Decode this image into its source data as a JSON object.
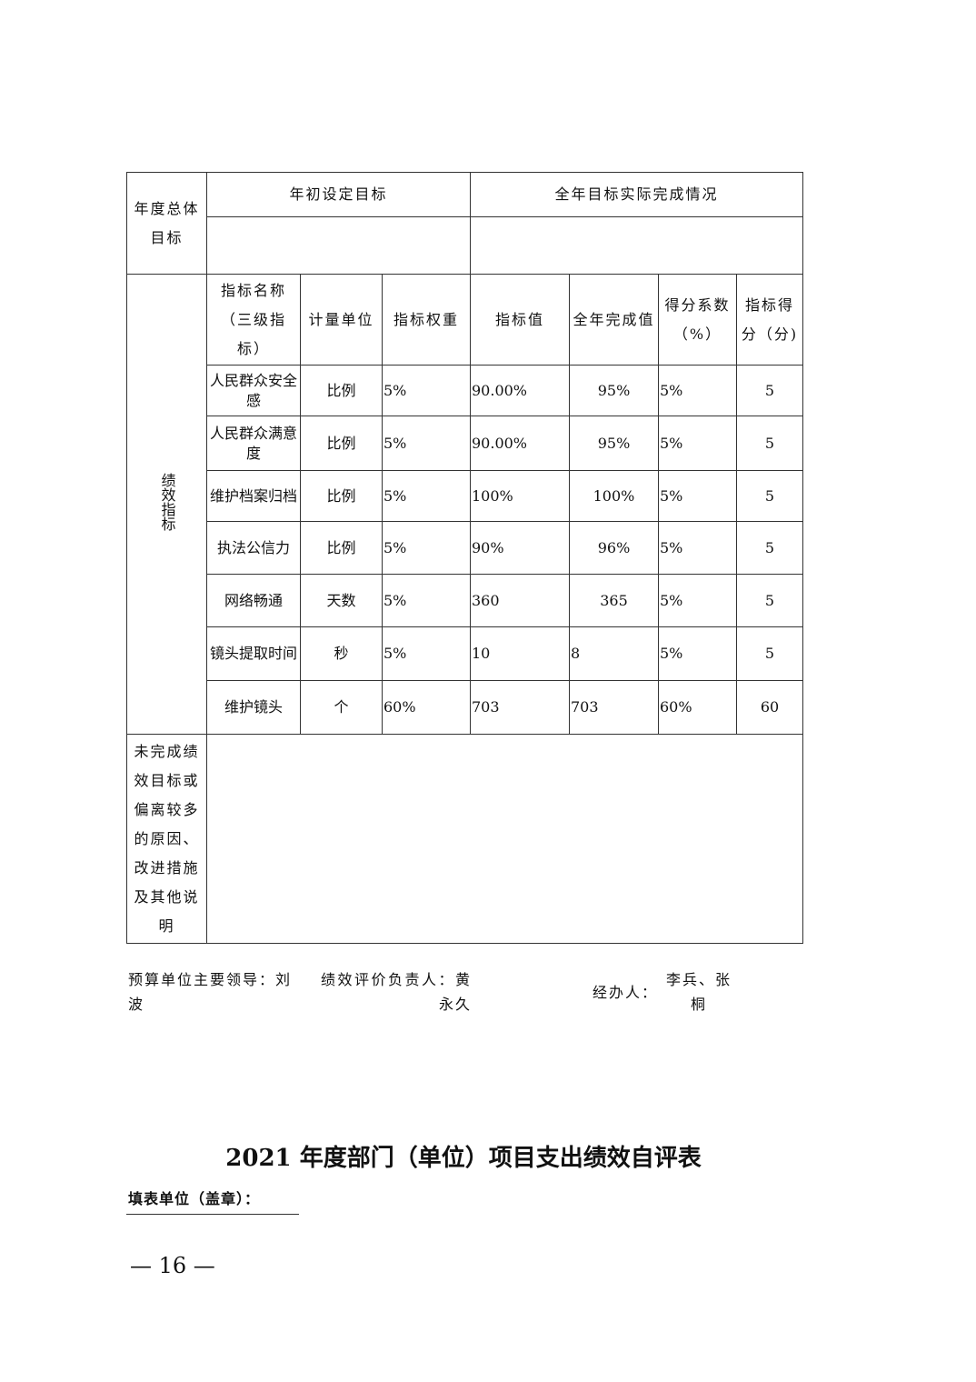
{
  "table": {
    "overall_goal_label": "年度总体目标",
    "initial_target_label": "年初设定目标",
    "actual_completion_label": "全年目标实际完成情况",
    "initial_target_value": "",
    "actual_completion_value": "",
    "performance_label": "绩效指标",
    "headers": [
      "指标名称（三级指标）",
      "计量单位",
      "指标权重",
      "指标值",
      "全年完成值",
      "得分系数（%）",
      "指标得分（分)"
    ],
    "rows": [
      [
        "人民群众安全感",
        "比例",
        "5%",
        "90.00%",
        "95%",
        "5%",
        "5"
      ],
      [
        "人民群众满意度",
        "比例",
        "5%",
        "90.00%",
        "95%",
        "5%",
        "5"
      ],
      [
        "维护档案归档",
        "比例",
        "5%",
        "100%",
        "100%",
        "5%",
        "5"
      ],
      [
        "执法公信力",
        "比例",
        "5%",
        "90%",
        "96%",
        "5%",
        "5"
      ],
      [
        "网络畅通",
        "天数",
        "5%",
        "360",
        "365",
        "5%",
        "5"
      ],
      [
        "镜头提取时间",
        "秒",
        "5%",
        "10",
        "8",
        "5%",
        "5"
      ],
      [
        "维护镜头",
        "个",
        "60%",
        "703",
        "703",
        "60%",
        "60"
      ]
    ],
    "reason_label": "未完成绩效目标或偏离较多的原因、改进措施及其他说明",
    "reason_value": ""
  },
  "signatures": {
    "leader": "预算单位主要领导：刘波",
    "evaluator": "绩效评价负责人：黄永久",
    "handler_label": "经办人：",
    "handler": "李兵、张桐"
  },
  "next_title": "2021 年度部门（单位）项目支出绩效自评表",
  "fill_unit": "填表单位（盖章）：",
  "page_number": "— 16 —"
}
